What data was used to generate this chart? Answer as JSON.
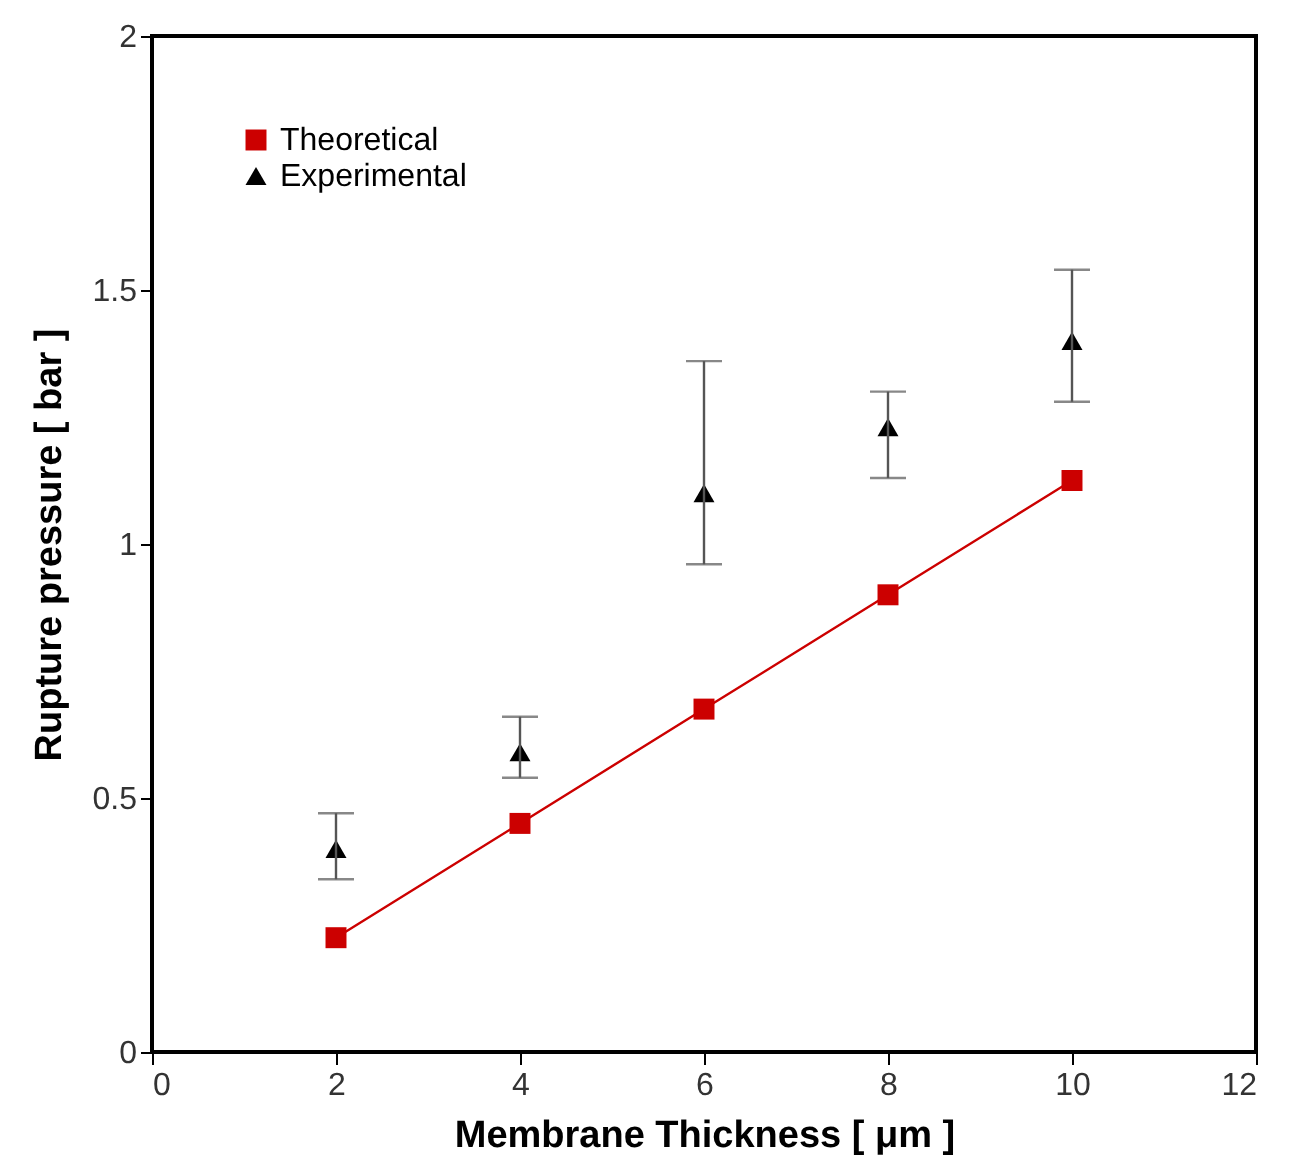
{
  "chart_data": {
    "type": "line",
    "xlabel": "Membrane Thickness [ μm ]",
    "ylabel": "Rupture pressure [ bar ]",
    "x": [
      2,
      4,
      6,
      8,
      10
    ],
    "series": [
      {
        "name": "Theoretical",
        "type": "line",
        "color": "#cc0000",
        "marker": "square",
        "values": [
          0.225,
          0.45,
          0.675,
          0.9,
          1.125
        ]
      },
      {
        "name": "Experimental",
        "type": "scatter",
        "color": "#000000",
        "marker": "triangle",
        "values": [
          0.4,
          0.59,
          1.1,
          1.23,
          1.4
        ],
        "errors": [
          [
            0.34,
            0.47
          ],
          [
            0.54,
            0.66
          ],
          [
            0.96,
            1.36
          ],
          [
            1.13,
            1.3
          ],
          [
            1.28,
            1.54
          ]
        ]
      }
    ],
    "xlim": [
      0,
      12
    ],
    "xticks": [
      0,
      2,
      4,
      6,
      8,
      10,
      12
    ],
    "ylim": [
      0,
      2
    ],
    "yticks": [
      0,
      0.5,
      1,
      1.5,
      2
    ],
    "grid": false,
    "legend": "top left"
  }
}
